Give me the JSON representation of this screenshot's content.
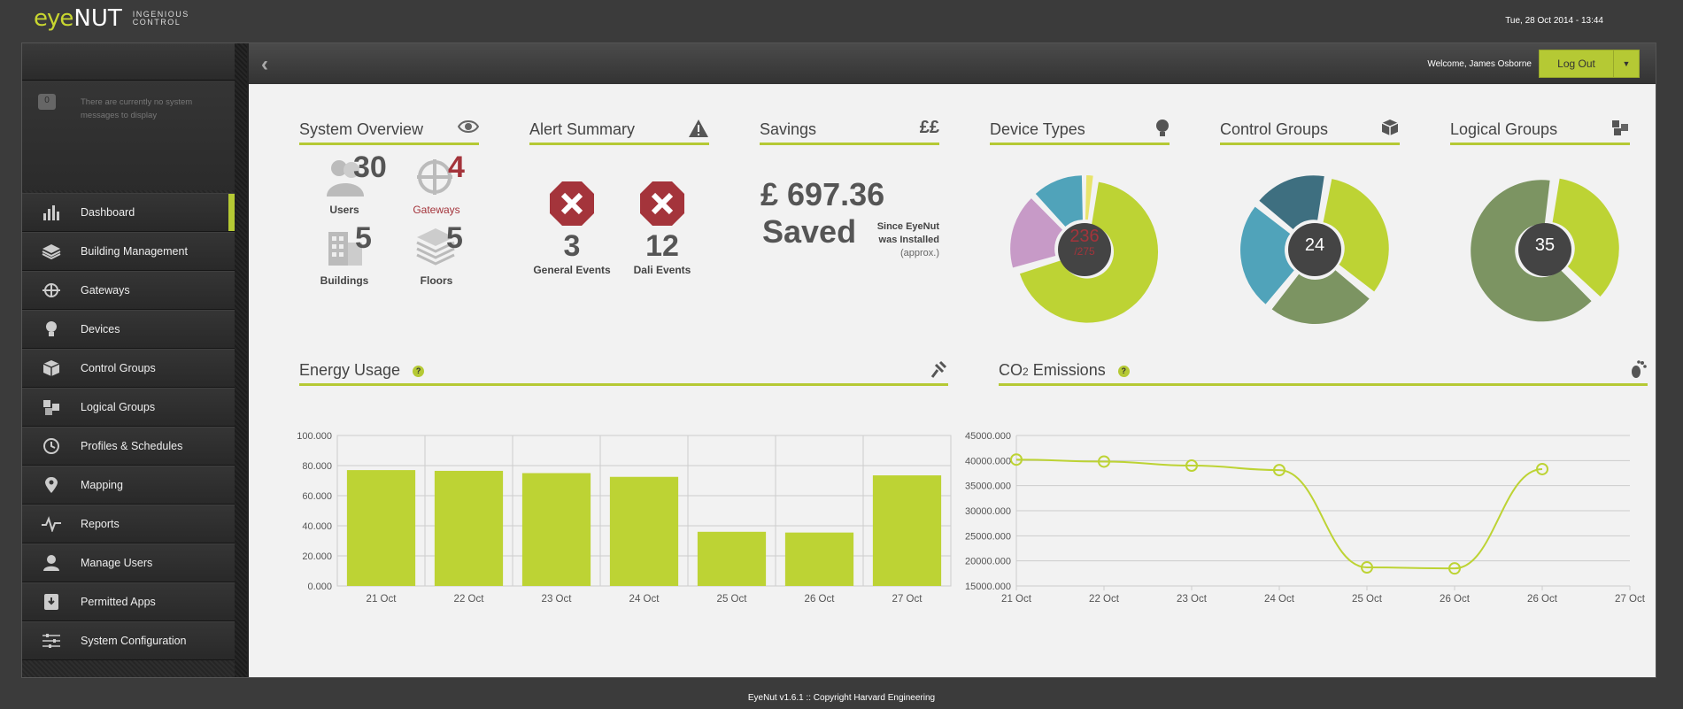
{
  "brand": {
    "eye": "eye",
    "nut": "NUT",
    "tagline_1": "INGENIOUS",
    "tagline_2": "CONTROL"
  },
  "datetime": "Tue, 28 Oct 2014 - 13:44",
  "header": {
    "welcome": "Welcome, James Osborne",
    "logout_label": "Log Out"
  },
  "sidebar": {
    "message_count": "0",
    "message": "There are currently no system messages to display",
    "items": [
      {
        "label": "Dashboard",
        "icon": "bar-chart-icon"
      },
      {
        "label": "Building Management",
        "icon": "layers-icon"
      },
      {
        "label": "Gateways",
        "icon": "gateway-icon"
      },
      {
        "label": "Devices",
        "icon": "bulb-icon"
      },
      {
        "label": "Control Groups",
        "icon": "cubes-icon"
      },
      {
        "label": "Logical Groups",
        "icon": "cube-cluster-icon"
      },
      {
        "label": "Profiles & Schedules",
        "icon": "clock-icon"
      },
      {
        "label": "Mapping",
        "icon": "map-pin-icon"
      },
      {
        "label": "Reports",
        "icon": "pulse-icon"
      },
      {
        "label": "Manage Users",
        "icon": "user-icon"
      },
      {
        "label": "Permitted Apps",
        "icon": "app-icon"
      },
      {
        "label": "System Configuration",
        "icon": "sliders-icon"
      }
    ]
  },
  "overview": {
    "title": "System Overview",
    "users_count": "30",
    "users_label": "Users",
    "gateways_count": "4",
    "gateways_label": "Gateways",
    "buildings_count": "5",
    "buildings_label": "Buildings",
    "floors_count": "5",
    "floors_label": "Floors"
  },
  "alerts": {
    "title": "Alert Summary",
    "general_count": "3",
    "general_label": "General Events",
    "dali_count": "12",
    "dali_label": "Dali Events"
  },
  "savings": {
    "title": "Savings",
    "amount": "£ 697.36",
    "saved": "Saved",
    "since_1": "Since EyeNut",
    "since_2": "was Installed",
    "approx": "(approx.)"
  },
  "device_types": {
    "title": "Device Types",
    "value": "236",
    "total": "/275",
    "slices": [
      62,
      16,
      11,
      2
    ],
    "colors": [
      "#bdd334",
      "#c79ac7",
      "#50a3ba",
      "#e8e46b"
    ]
  },
  "control_groups": {
    "title": "Control Groups",
    "value": "24",
    "slices": [
      33,
      25,
      25,
      17
    ],
    "colors": [
      "#bdd334",
      "#7c9462",
      "#50a3ba",
      "#3e6f80"
    ]
  },
  "logical_groups": {
    "title": "Logical Groups",
    "value": "35",
    "slices": [
      35,
      65
    ],
    "colors": [
      "#bdd334",
      "#7c9462"
    ]
  },
  "energy": {
    "title": "Energy Usage"
  },
  "co2": {
    "title_main": "CO",
    "title_sub": "2",
    "title_rest": " Emissions"
  },
  "chart_data": [
    {
      "type": "bar",
      "title": "Energy Usage",
      "categories": [
        "21 Oct",
        "22 Oct",
        "23 Oct",
        "24 Oct",
        "25 Oct",
        "26 Oct",
        "27 Oct"
      ],
      "values": [
        77,
        76.5,
        75,
        72.5,
        36,
        35.5,
        73.5
      ],
      "ylim": [
        0,
        100
      ],
      "yticks": [
        "0.000",
        "20.000",
        "40.000",
        "60.000",
        "80.000",
        "100.000"
      ],
      "grid": true,
      "color": "#bdd334"
    },
    {
      "type": "line",
      "title": "CO₂ Emissions",
      "x": [
        "21 Oct",
        "22 Oct",
        "23 Oct",
        "24 Oct",
        "25 Oct",
        "26 Oct",
        "26 Oct"
      ],
      "xticks": [
        "21 Oct",
        "22 Oct",
        "23 Oct",
        "24 Oct",
        "25 Oct",
        "26 Oct",
        "26 Oct",
        "27 Oct"
      ],
      "values": [
        40200,
        39800,
        39000,
        38100,
        18700,
        18500,
        38300
      ],
      "ylim": [
        15000,
        45000
      ],
      "yticks": [
        "15000.000",
        "20000.000",
        "25000.000",
        "30000.000",
        "35000.000",
        "40000.000",
        "45000.000"
      ],
      "grid": true,
      "color": "#bdd334"
    }
  ],
  "footer": "EyeNut v1.6.1 :: Copyright Harvard Engineering"
}
